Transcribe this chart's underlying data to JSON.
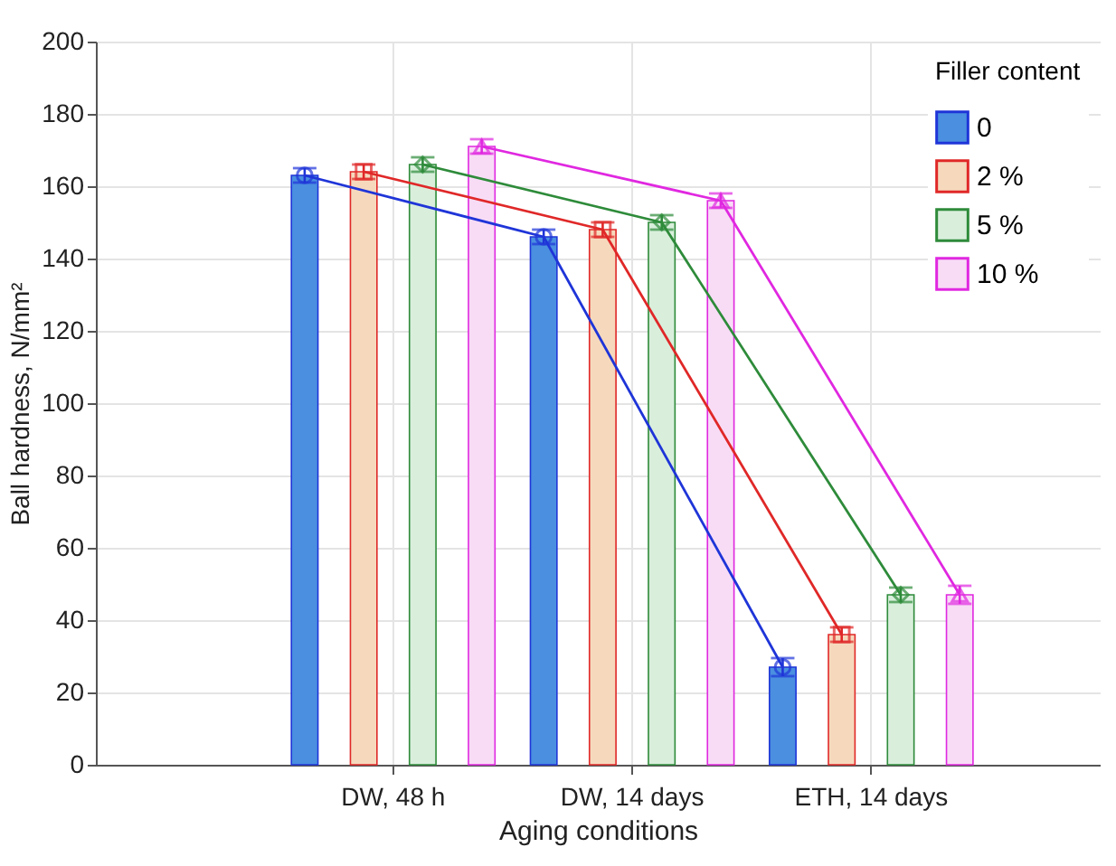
{
  "chart_data": {
    "type": "bar",
    "xlabel": "Aging conditions",
    "ylabel": "Ball hardness, N/mm²",
    "legend_title": "Filler content",
    "categories": [
      "DW, 48 h",
      "DW, 14 days",
      "ETH, 14 days"
    ],
    "ylim": [
      0,
      200
    ],
    "yticks": [
      0,
      20,
      40,
      60,
      80,
      100,
      120,
      140,
      160,
      180,
      200
    ],
    "grid": true,
    "legend": "top right",
    "line_style": "solid",
    "series": [
      {
        "name": "0",
        "type": "bar",
        "color": "#4a8fe0",
        "values": [
          163,
          146,
          27
        ]
      },
      {
        "name": "2 %",
        "type": "bar",
        "color": "#f6d9bd",
        "values": [
          164,
          148,
          36
        ]
      },
      {
        "name": "5 %",
        "type": "bar",
        "color": "#d9efdc",
        "values": [
          166,
          150,
          47
        ]
      },
      {
        "name": "10 %",
        "type": "bar",
        "color": "#f8dcf6",
        "values": [
          171,
          156,
          47
        ]
      },
      {
        "type": "line",
        "color": "#1f35d8",
        "marker": "circle",
        "values": [
          163,
          146,
          27
        ],
        "errors": [
          2,
          2,
          2.5
        ]
      },
      {
        "type": "line",
        "color": "#e02828",
        "marker": "square",
        "values": [
          164,
          148,
          36
        ],
        "errors": [
          2,
          2,
          2
        ]
      },
      {
        "type": "line",
        "color": "#2e8b3a",
        "marker": "diamond",
        "values": [
          166,
          150,
          47
        ],
        "errors": [
          2,
          2,
          2
        ]
      },
      {
        "type": "line",
        "color": "#e028e0",
        "marker": "triangle",
        "values": [
          171,
          156,
          47
        ],
        "errors": [
          2,
          2,
          2.5
        ]
      }
    ]
  }
}
